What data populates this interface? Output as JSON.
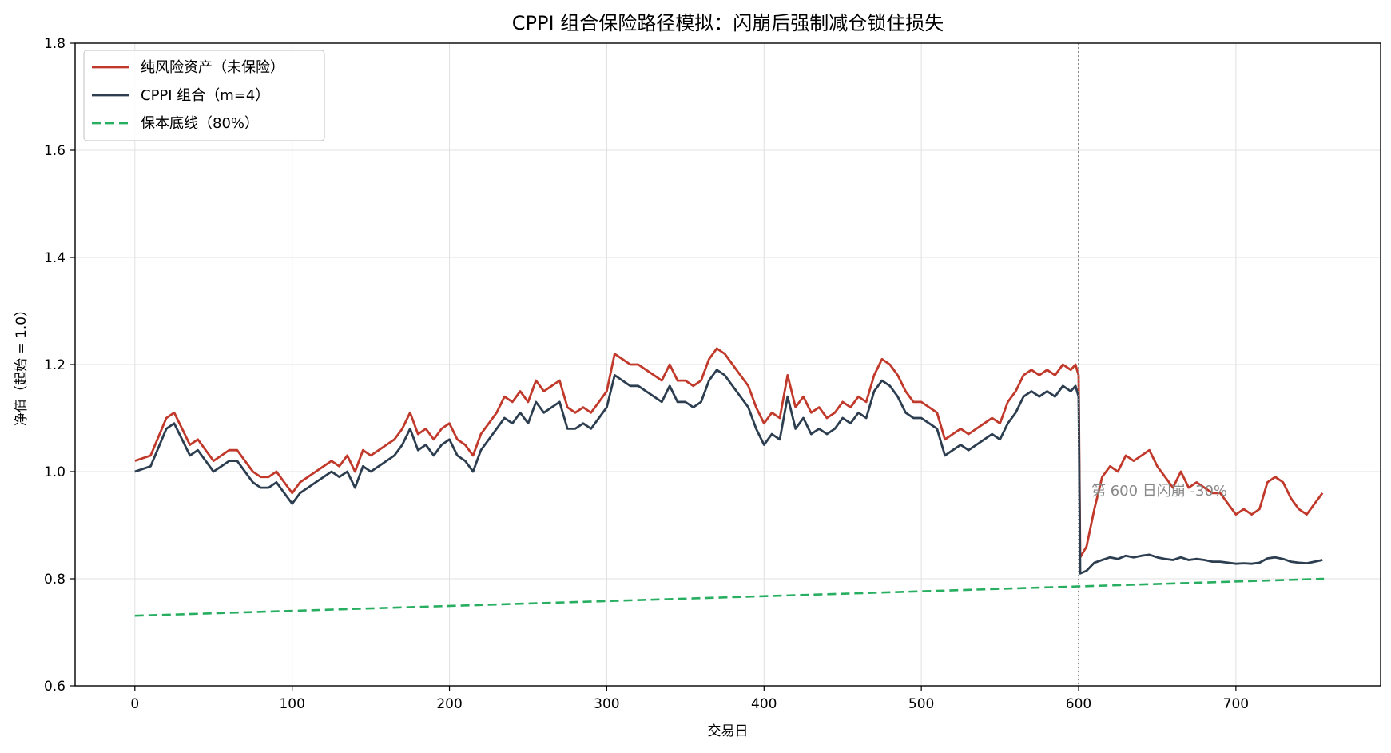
{
  "chart_data": {
    "type": "line",
    "title": "CPPI 组合保险路径模拟：闪崩后强制减仓锁住损失",
    "xlabel": "交易日",
    "ylabel": "净值（起始 = 1.0）",
    "xlim": [
      -38,
      792
    ],
    "ylim": [
      0.6,
      1.8
    ],
    "xticks": [
      0,
      100,
      200,
      300,
      400,
      500,
      600,
      700
    ],
    "xtick_labels": [
      "0",
      "100",
      "200",
      "300",
      "400",
      "500",
      "600",
      "700"
    ],
    "yticks": [
      0.6,
      0.8,
      1.0,
      1.2,
      1.4,
      1.6,
      1.8
    ],
    "ytick_labels": [
      "0.6",
      "0.8",
      "1.0",
      "1.2",
      "1.4",
      "1.6",
      "1.8"
    ],
    "grid": true,
    "legend_position": "top-left",
    "crash_day": 600,
    "annotation": "第 600 日闪崩 -30%",
    "series": [
      {
        "name": "纯风险资产（未保险）",
        "color": "#c0392b",
        "style": "solid",
        "points": [
          [
            0,
            1.02
          ],
          [
            10,
            1.03
          ],
          [
            20,
            1.1
          ],
          [
            25,
            1.11
          ],
          [
            30,
            1.08
          ],
          [
            35,
            1.05
          ],
          [
            40,
            1.06
          ],
          [
            45,
            1.04
          ],
          [
            50,
            1.02
          ],
          [
            55,
            1.03
          ],
          [
            60,
            1.04
          ],
          [
            65,
            1.04
          ],
          [
            70,
            1.02
          ],
          [
            75,
            1.0
          ],
          [
            80,
            0.99
          ],
          [
            85,
            0.99
          ],
          [
            90,
            1.0
          ],
          [
            95,
            0.98
          ],
          [
            100,
            0.96
          ],
          [
            105,
            0.98
          ],
          [
            110,
            0.99
          ],
          [
            115,
            1.0
          ],
          [
            120,
            1.01
          ],
          [
            125,
            1.02
          ],
          [
            130,
            1.01
          ],
          [
            135,
            1.03
          ],
          [
            140,
            1.0
          ],
          [
            145,
            1.04
          ],
          [
            150,
            1.03
          ],
          [
            155,
            1.04
          ],
          [
            160,
            1.05
          ],
          [
            165,
            1.06
          ],
          [
            170,
            1.08
          ],
          [
            175,
            1.11
          ],
          [
            180,
            1.07
          ],
          [
            185,
            1.08
          ],
          [
            190,
            1.06
          ],
          [
            195,
            1.08
          ],
          [
            200,
            1.09
          ],
          [
            205,
            1.06
          ],
          [
            210,
            1.05
          ],
          [
            215,
            1.03
          ],
          [
            220,
            1.07
          ],
          [
            225,
            1.09
          ],
          [
            230,
            1.11
          ],
          [
            235,
            1.14
          ],
          [
            240,
            1.13
          ],
          [
            245,
            1.15
          ],
          [
            250,
            1.13
          ],
          [
            255,
            1.17
          ],
          [
            260,
            1.15
          ],
          [
            265,
            1.16
          ],
          [
            270,
            1.17
          ],
          [
            275,
            1.12
          ],
          [
            280,
            1.11
          ],
          [
            285,
            1.12
          ],
          [
            290,
            1.11
          ],
          [
            295,
            1.13
          ],
          [
            300,
            1.15
          ],
          [
            305,
            1.22
          ],
          [
            310,
            1.21
          ],
          [
            315,
            1.2
          ],
          [
            320,
            1.2
          ],
          [
            325,
            1.19
          ],
          [
            330,
            1.18
          ],
          [
            335,
            1.17
          ],
          [
            340,
            1.2
          ],
          [
            345,
            1.17
          ],
          [
            350,
            1.17
          ],
          [
            355,
            1.16
          ],
          [
            360,
            1.17
          ],
          [
            365,
            1.21
          ],
          [
            370,
            1.23
          ],
          [
            375,
            1.22
          ],
          [
            380,
            1.2
          ],
          [
            385,
            1.18
          ],
          [
            390,
            1.16
          ],
          [
            395,
            1.12
          ],
          [
            400,
            1.09
          ],
          [
            405,
            1.11
          ],
          [
            410,
            1.1
          ],
          [
            415,
            1.18
          ],
          [
            420,
            1.12
          ],
          [
            425,
            1.14
          ],
          [
            430,
            1.11
          ],
          [
            435,
            1.12
          ],
          [
            440,
            1.1
          ],
          [
            445,
            1.11
          ],
          [
            450,
            1.13
          ],
          [
            455,
            1.12
          ],
          [
            460,
            1.14
          ],
          [
            465,
            1.13
          ],
          [
            470,
            1.18
          ],
          [
            475,
            1.21
          ],
          [
            480,
            1.2
          ],
          [
            485,
            1.18
          ],
          [
            490,
            1.15
          ],
          [
            495,
            1.13
          ],
          [
            500,
            1.13
          ],
          [
            505,
            1.12
          ],
          [
            510,
            1.11
          ],
          [
            515,
            1.06
          ],
          [
            520,
            1.07
          ],
          [
            525,
            1.08
          ],
          [
            530,
            1.07
          ],
          [
            535,
            1.08
          ],
          [
            540,
            1.09
          ],
          [
            545,
            1.1
          ],
          [
            550,
            1.09
          ],
          [
            555,
            1.13
          ],
          [
            560,
            1.15
          ],
          [
            565,
            1.18
          ],
          [
            570,
            1.19
          ],
          [
            575,
            1.18
          ],
          [
            580,
            1.19
          ],
          [
            585,
            1.18
          ],
          [
            590,
            1.2
          ],
          [
            595,
            1.19
          ],
          [
            598,
            1.2
          ],
          [
            599,
            1.19
          ],
          [
            600,
            1.18
          ],
          [
            601,
            0.84
          ],
          [
            605,
            0.86
          ],
          [
            610,
            0.93
          ],
          [
            615,
            0.99
          ],
          [
            620,
            1.01
          ],
          [
            625,
            1.0
          ],
          [
            630,
            1.03
          ],
          [
            635,
            1.02
          ],
          [
            640,
            1.03
          ],
          [
            645,
            1.04
          ],
          [
            650,
            1.01
          ],
          [
            655,
            0.99
          ],
          [
            660,
            0.97
          ],
          [
            665,
            1.0
          ],
          [
            670,
            0.97
          ],
          [
            675,
            0.98
          ],
          [
            680,
            0.97
          ],
          [
            685,
            0.96
          ],
          [
            690,
            0.96
          ],
          [
            695,
            0.94
          ],
          [
            700,
            0.92
          ],
          [
            705,
            0.93
          ],
          [
            710,
            0.92
          ],
          [
            715,
            0.93
          ],
          [
            720,
            0.98
          ],
          [
            725,
            0.99
          ],
          [
            730,
            0.98
          ],
          [
            735,
            0.95
          ],
          [
            740,
            0.93
          ],
          [
            745,
            0.92
          ],
          [
            750,
            0.94
          ],
          [
            755,
            0.96
          ]
        ]
      },
      {
        "name": "CPPI 组合（m=4）",
        "color": "#2c3e50",
        "style": "solid",
        "points": [
          [
            0,
            1.0
          ],
          [
            10,
            1.01
          ],
          [
            20,
            1.08
          ],
          [
            25,
            1.09
          ],
          [
            30,
            1.06
          ],
          [
            35,
            1.03
          ],
          [
            40,
            1.04
          ],
          [
            45,
            1.02
          ],
          [
            50,
            1.0
          ],
          [
            55,
            1.01
          ],
          [
            60,
            1.02
          ],
          [
            65,
            1.02
          ],
          [
            70,
            1.0
          ],
          [
            75,
            0.98
          ],
          [
            80,
            0.97
          ],
          [
            85,
            0.97
          ],
          [
            90,
            0.98
          ],
          [
            95,
            0.96
          ],
          [
            100,
            0.94
          ],
          [
            105,
            0.96
          ],
          [
            110,
            0.97
          ],
          [
            115,
            0.98
          ],
          [
            120,
            0.99
          ],
          [
            125,
            1.0
          ],
          [
            130,
            0.99
          ],
          [
            135,
            1.0
          ],
          [
            140,
            0.97
          ],
          [
            145,
            1.01
          ],
          [
            150,
            1.0
          ],
          [
            155,
            1.01
          ],
          [
            160,
            1.02
          ],
          [
            165,
            1.03
          ],
          [
            170,
            1.05
          ],
          [
            175,
            1.08
          ],
          [
            180,
            1.04
          ],
          [
            185,
            1.05
          ],
          [
            190,
            1.03
          ],
          [
            195,
            1.05
          ],
          [
            200,
            1.06
          ],
          [
            205,
            1.03
          ],
          [
            210,
            1.02
          ],
          [
            215,
            1.0
          ],
          [
            220,
            1.04
          ],
          [
            225,
            1.06
          ],
          [
            230,
            1.08
          ],
          [
            235,
            1.1
          ],
          [
            240,
            1.09
          ],
          [
            245,
            1.11
          ],
          [
            250,
            1.09
          ],
          [
            255,
            1.13
          ],
          [
            260,
            1.11
          ],
          [
            265,
            1.12
          ],
          [
            270,
            1.13
          ],
          [
            275,
            1.08
          ],
          [
            280,
            1.08
          ],
          [
            285,
            1.09
          ],
          [
            290,
            1.08
          ],
          [
            295,
            1.1
          ],
          [
            300,
            1.12
          ],
          [
            305,
            1.18
          ],
          [
            310,
            1.17
          ],
          [
            315,
            1.16
          ],
          [
            320,
            1.16
          ],
          [
            325,
            1.15
          ],
          [
            330,
            1.14
          ],
          [
            335,
            1.13
          ],
          [
            340,
            1.16
          ],
          [
            345,
            1.13
          ],
          [
            350,
            1.13
          ],
          [
            355,
            1.12
          ],
          [
            360,
            1.13
          ],
          [
            365,
            1.17
          ],
          [
            370,
            1.19
          ],
          [
            375,
            1.18
          ],
          [
            380,
            1.16
          ],
          [
            385,
            1.14
          ],
          [
            390,
            1.12
          ],
          [
            395,
            1.08
          ],
          [
            400,
            1.05
          ],
          [
            405,
            1.07
          ],
          [
            410,
            1.06
          ],
          [
            415,
            1.14
          ],
          [
            420,
            1.08
          ],
          [
            425,
            1.1
          ],
          [
            430,
            1.07
          ],
          [
            435,
            1.08
          ],
          [
            440,
            1.07
          ],
          [
            445,
            1.08
          ],
          [
            450,
            1.1
          ],
          [
            455,
            1.09
          ],
          [
            460,
            1.11
          ],
          [
            465,
            1.1
          ],
          [
            470,
            1.15
          ],
          [
            475,
            1.17
          ],
          [
            480,
            1.16
          ],
          [
            485,
            1.14
          ],
          [
            490,
            1.11
          ],
          [
            495,
            1.1
          ],
          [
            500,
            1.1
          ],
          [
            505,
            1.09
          ],
          [
            510,
            1.08
          ],
          [
            515,
            1.03
          ],
          [
            520,
            1.04
          ],
          [
            525,
            1.05
          ],
          [
            530,
            1.04
          ],
          [
            535,
            1.05
          ],
          [
            540,
            1.06
          ],
          [
            545,
            1.07
          ],
          [
            550,
            1.06
          ],
          [
            555,
            1.09
          ],
          [
            560,
            1.11
          ],
          [
            565,
            1.14
          ],
          [
            570,
            1.15
          ],
          [
            575,
            1.14
          ],
          [
            580,
            1.15
          ],
          [
            585,
            1.14
          ],
          [
            590,
            1.16
          ],
          [
            595,
            1.15
          ],
          [
            598,
            1.16
          ],
          [
            599,
            1.15
          ],
          [
            600,
            1.14
          ],
          [
            601,
            0.81
          ],
          [
            605,
            0.815
          ],
          [
            610,
            0.83
          ],
          [
            615,
            0.835
          ],
          [
            620,
            0.84
          ],
          [
            625,
            0.837
          ],
          [
            630,
            0.843
          ],
          [
            635,
            0.84
          ],
          [
            640,
            0.843
          ],
          [
            645,
            0.845
          ],
          [
            650,
            0.84
          ],
          [
            655,
            0.837
          ],
          [
            660,
            0.835
          ],
          [
            665,
            0.84
          ],
          [
            670,
            0.835
          ],
          [
            675,
            0.837
          ],
          [
            680,
            0.835
          ],
          [
            685,
            0.832
          ],
          [
            690,
            0.832
          ],
          [
            695,
            0.83
          ],
          [
            700,
            0.828
          ],
          [
            705,
            0.829
          ],
          [
            710,
            0.828
          ],
          [
            715,
            0.83
          ],
          [
            720,
            0.838
          ],
          [
            725,
            0.84
          ],
          [
            730,
            0.837
          ],
          [
            735,
            0.832
          ],
          [
            740,
            0.83
          ],
          [
            745,
            0.829
          ],
          [
            750,
            0.832
          ],
          [
            755,
            0.835
          ]
        ]
      },
      {
        "name": "保本底线（80%）",
        "color": "#27ae60",
        "style": "dashed",
        "points": [
          [
            0,
            0.731
          ],
          [
            756,
            0.8
          ]
        ]
      }
    ]
  }
}
